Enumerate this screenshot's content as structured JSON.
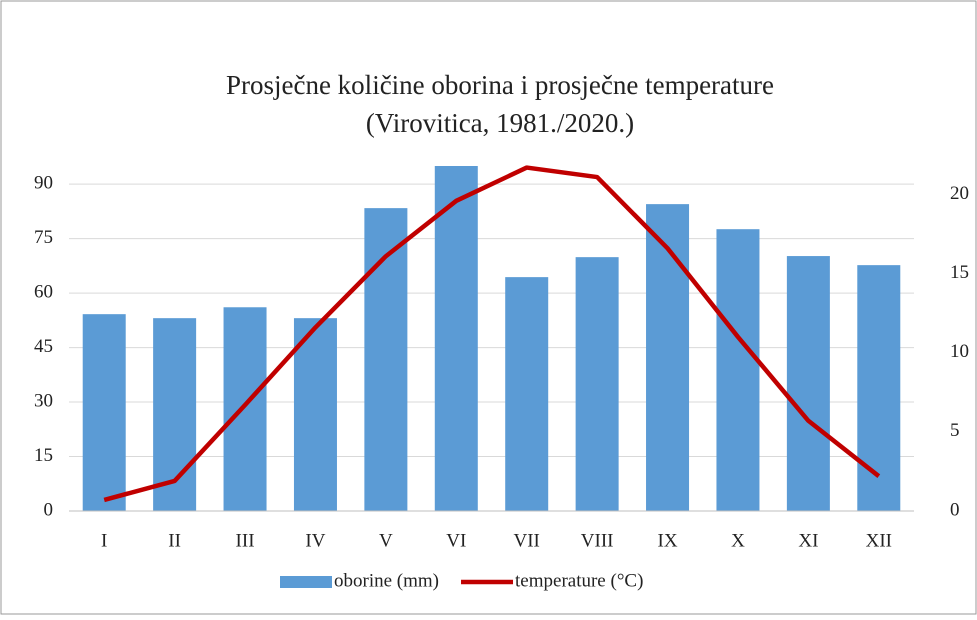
{
  "chart_data": {
    "type": "bar_line",
    "title": "Prosječne količine oborina i prosječne temperature",
    "subtitle": "(Virovitica, 1981./2020.)",
    "categories": [
      "I",
      "II",
      "III",
      "IV",
      "V",
      "VI",
      "VII",
      "VIII",
      "IX",
      "X",
      "XI",
      "XII"
    ],
    "series": [
      {
        "name": "oborine (mm)",
        "type": "bar",
        "color": "#5b9bd5",
        "axis": "y",
        "values": [
          54.2,
          53.1,
          56.1,
          53.1,
          83.4,
          95,
          64.4,
          69.9,
          84.5,
          77.6,
          70.2,
          67.7
        ]
      },
      {
        "name": "temperature (°C)",
        "type": "line",
        "color": "#c00000",
        "axis": "y2",
        "values": [
          0.7,
          1.9,
          6.7,
          11.6,
          16.1,
          19.6,
          21.7,
          21.1,
          16.6,
          11.0,
          5.7,
          2.2
        ]
      }
    ],
    "ylim": [
      0,
      95
    ],
    "yticks": [
      0,
      15,
      30,
      45,
      60,
      75,
      90
    ],
    "y2lim": [
      0,
      21.8
    ],
    "y2ticks": [
      0,
      5,
      10,
      15,
      20
    ],
    "grid": true,
    "legend": "bottom"
  }
}
